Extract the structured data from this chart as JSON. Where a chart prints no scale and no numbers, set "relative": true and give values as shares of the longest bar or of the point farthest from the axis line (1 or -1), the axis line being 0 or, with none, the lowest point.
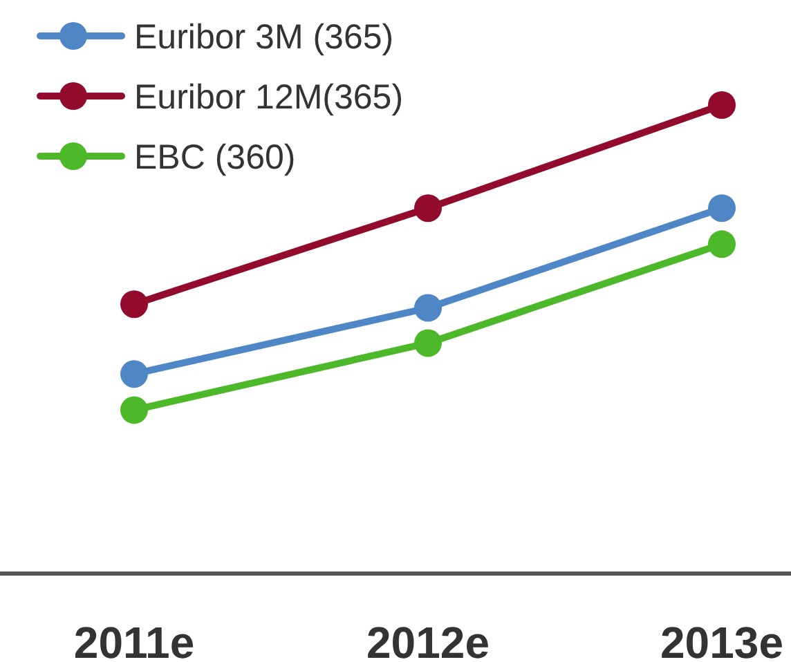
{
  "chart_data": {
    "type": "line",
    "relative": true,
    "categories": [
      "2011e",
      "2012e",
      "2013e"
    ],
    "series": [
      {
        "name": "Euribor 3M (365)",
        "color": "#4f86c6",
        "values": [
          0.426,
          0.567,
          0.78
        ]
      },
      {
        "name": "Euribor 12M(365)",
        "color": "#920a2c",
        "values": [
          0.575,
          0.78,
          1
        ]
      },
      {
        "name": "EBC (360)",
        "color": "#4db82a",
        "values": [
          0.349,
          0.492,
          0.703
        ]
      }
    ],
    "legend": "top left",
    "marker": "circle",
    "line_style": "solid"
  }
}
